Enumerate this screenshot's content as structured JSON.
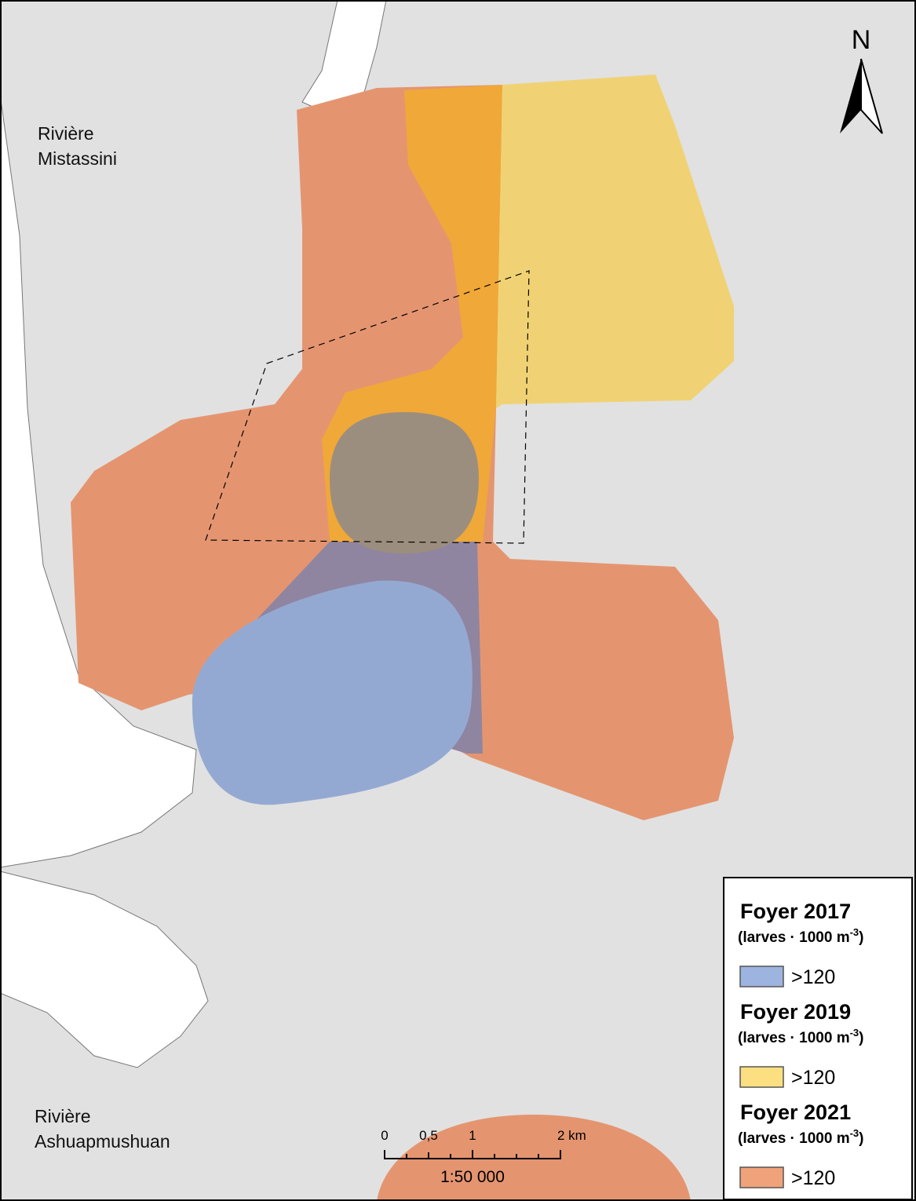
{
  "labels": [
    {
      "lines": [
        "Rivière",
        "Mistassini"
      ]
    },
    {
      "lines": [
        "Rivière",
        "Ashuapmushuan"
      ]
    }
  ],
  "north_arrow": "N",
  "scale_bar": {
    "ticks": [
      "0",
      "0,5",
      "1",
      "2 km"
    ],
    "ratio": "1:50 000"
  },
  "legend": [
    {
      "title": "Foyer 2017",
      "unit": [
        "(larves · 1000 m",
        "-3",
        ")"
      ],
      "label": ">120",
      "color": "#9db3e0"
    },
    {
      "title": "Foyer 2019",
      "unit": [
        "(larves · 1000 m",
        "-3",
        ")"
      ],
      "label": ">120",
      "color": "#fbdf80"
    },
    {
      "title": "Foyer 2021",
      "unit": [
        "(larves · 1000 m",
        "-3",
        ")"
      ],
      "label": ">120",
      "color": "#f0a27a"
    }
  ]
}
